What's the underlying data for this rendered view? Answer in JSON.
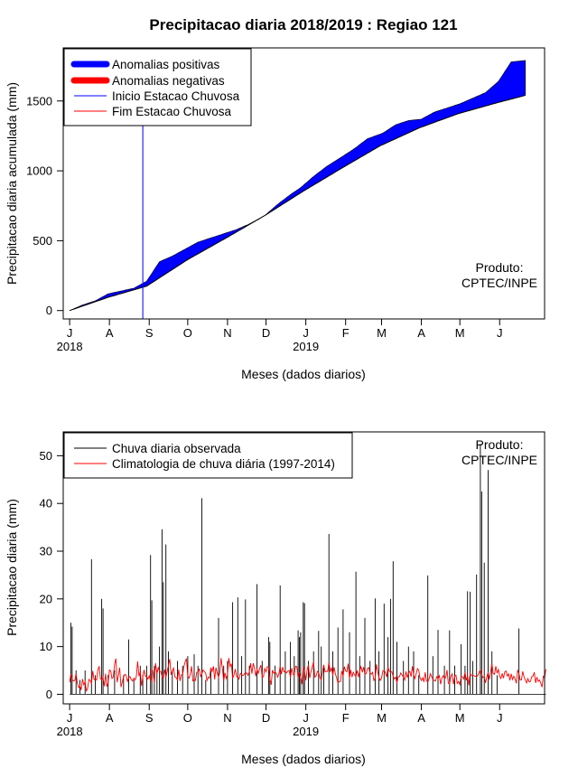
{
  "title": "Precipitacao diaria 2018/2019 : Regiao 121",
  "months": [
    "J",
    "A",
    "S",
    "O",
    "N",
    "D",
    "J",
    "F",
    "M",
    "A",
    "M",
    "J"
  ],
  "year_labels": [
    {
      "month_index": 0,
      "label": "2018"
    },
    {
      "month_index": 6,
      "label": "2019"
    }
  ],
  "xlabel": "Meses (dados diarios)",
  "product_text": [
    "Produto:",
    "CPTEC/INPE"
  ],
  "chart_data": [
    {
      "type": "area",
      "id": "accumulated",
      "ylabel": "Precipitacao diaria acumulada (mm)",
      "ylim": [
        -60,
        1880
      ],
      "yticks": [
        0,
        500,
        1000,
        1500
      ],
      "xlim_days": [
        -5,
        370
      ],
      "legend": [
        {
          "label": "Anomalias positivas",
          "color": "#0000ff",
          "style": "thick"
        },
        {
          "label": "Anomalias negativas",
          "color": "#ff0000",
          "style": "thick"
        },
        {
          "label": "Inicio Estacao Chuvosa",
          "color": "#0000ff",
          "style": "thin"
        },
        {
          "label": "Fim Estacao Chuvosa",
          "color": "#ff0000",
          "style": "thin"
        }
      ],
      "season_start_day": 57,
      "climatology_days": [
        0,
        30,
        60,
        92,
        122,
        152,
        183,
        214,
        242,
        273,
        303,
        334,
        355
      ],
      "climatology_values": [
        0,
        95,
        175,
        365,
        520,
        680,
        860,
        1030,
        1180,
        1310,
        1410,
        1490,
        1540
      ],
      "observed_days": [
        0,
        10,
        20,
        30,
        40,
        50,
        60,
        70,
        80,
        90,
        100,
        110,
        120,
        130,
        140,
        152,
        162,
        172,
        180,
        190,
        200,
        212,
        222,
        232,
        244,
        254,
        264,
        274,
        284,
        294,
        304,
        314,
        324,
        334,
        344,
        355
      ],
      "observed_values": [
        0,
        40,
        70,
        120,
        140,
        160,
        210,
        350,
        390,
        440,
        490,
        520,
        550,
        580,
        620,
        680,
        760,
        830,
        880,
        960,
        1030,
        1100,
        1160,
        1230,
        1270,
        1330,
        1360,
        1370,
        1420,
        1450,
        1480,
        1520,
        1560,
        1640,
        1780,
        1790
      ]
    },
    {
      "type": "line",
      "id": "daily",
      "ylabel": "Precipitacao diaria (mm)",
      "ylim": [
        -2,
        55
      ],
      "yticks": [
        0,
        10,
        20,
        30,
        40,
        50
      ],
      "xlim_days": [
        -5,
        370
      ],
      "legend": [
        {
          "label": "Chuva diaria observada",
          "color": "#000000"
        },
        {
          "label": "Climatologia de chuva diária (1997-2014)",
          "color": "#ff0000"
        }
      ],
      "observed_spikes": [
        {
          "day": 1,
          "value": 15
        },
        {
          "day": 2,
          "value": 14.2
        },
        {
          "day": 5,
          "value": 5
        },
        {
          "day": 8,
          "value": 3
        },
        {
          "day": 12,
          "value": 5
        },
        {
          "day": 17,
          "value": 28.3
        },
        {
          "day": 20,
          "value": 4
        },
        {
          "day": 25,
          "value": 20
        },
        {
          "day": 26,
          "value": 18
        },
        {
          "day": 30,
          "value": 4
        },
        {
          "day": 35,
          "value": 5
        },
        {
          "day": 42,
          "value": 4
        },
        {
          "day": 46,
          "value": 11.5
        },
        {
          "day": 50,
          "value": 3
        },
        {
          "day": 55,
          "value": 6
        },
        {
          "day": 57,
          "value": 4
        },
        {
          "day": 60,
          "value": 6
        },
        {
          "day": 63,
          "value": 29.2
        },
        {
          "day": 64,
          "value": 19.7
        },
        {
          "day": 66,
          "value": 6
        },
        {
          "day": 68,
          "value": 5
        },
        {
          "day": 70,
          "value": 10
        },
        {
          "day": 72,
          "value": 34.6
        },
        {
          "day": 73,
          "value": 23.5
        },
        {
          "day": 75,
          "value": 31.4
        },
        {
          "day": 77,
          "value": 9
        },
        {
          "day": 80,
          "value": 5
        },
        {
          "day": 84,
          "value": 7
        },
        {
          "day": 88,
          "value": 6
        },
        {
          "day": 92,
          "value": 8
        },
        {
          "day": 97,
          "value": 8.4
        },
        {
          "day": 100,
          "value": 6
        },
        {
          "day": 103,
          "value": 41.1
        },
        {
          "day": 106,
          "value": 3
        },
        {
          "day": 110,
          "value": 5
        },
        {
          "day": 116,
          "value": 16
        },
        {
          "day": 120,
          "value": 6
        },
        {
          "day": 123,
          "value": 7
        },
        {
          "day": 127,
          "value": 19.3
        },
        {
          "day": 131,
          "value": 20.3
        },
        {
          "day": 134,
          "value": 8
        },
        {
          "day": 137,
          "value": 19.9
        },
        {
          "day": 140,
          "value": 6
        },
        {
          "day": 146,
          "value": 23.1
        },
        {
          "day": 150,
          "value": 7
        },
        {
          "day": 155,
          "value": 12
        },
        {
          "day": 156,
          "value": 11
        },
        {
          "day": 160,
          "value": 6
        },
        {
          "day": 164,
          "value": 22.8
        },
        {
          "day": 168,
          "value": 9
        },
        {
          "day": 172,
          "value": 11
        },
        {
          "day": 175,
          "value": 8
        },
        {
          "day": 178,
          "value": 13.4
        },
        {
          "day": 179,
          "value": 12
        },
        {
          "day": 180,
          "value": 13
        },
        {
          "day": 182,
          "value": 19.3
        },
        {
          "day": 183,
          "value": 19.1
        },
        {
          "day": 186,
          "value": 7
        },
        {
          "day": 190,
          "value": 9
        },
        {
          "day": 194,
          "value": 13.3
        },
        {
          "day": 196,
          "value": 10
        },
        {
          "day": 198,
          "value": 6
        },
        {
          "day": 202,
          "value": 33.6
        },
        {
          "day": 205,
          "value": 9
        },
        {
          "day": 209,
          "value": 14
        },
        {
          "day": 213,
          "value": 17.8
        },
        {
          "day": 218,
          "value": 13
        },
        {
          "day": 223,
          "value": 25.7
        },
        {
          "day": 226,
          "value": 8
        },
        {
          "day": 230,
          "value": 16
        },
        {
          "day": 234,
          "value": 7
        },
        {
          "day": 238,
          "value": 20.1
        },
        {
          "day": 241,
          "value": 9
        },
        {
          "day": 245,
          "value": 19
        },
        {
          "day": 248,
          "value": 12
        },
        {
          "day": 250,
          "value": 20
        },
        {
          "day": 252,
          "value": 27.9
        },
        {
          "day": 255,
          "value": 11
        },
        {
          "day": 260,
          "value": 7
        },
        {
          "day": 264,
          "value": 10
        },
        {
          "day": 268,
          "value": 9
        },
        {
          "day": 272,
          "value": 4
        },
        {
          "day": 279,
          "value": 24.9
        },
        {
          "day": 283,
          "value": 8
        },
        {
          "day": 287,
          "value": 13.5
        },
        {
          "day": 292,
          "value": 6
        },
        {
          "day": 296,
          "value": 13.4
        },
        {
          "day": 300,
          "value": 6
        },
        {
          "day": 305,
          "value": 10.5
        },
        {
          "day": 308,
          "value": 6
        },
        {
          "day": 310,
          "value": 21.6
        },
        {
          "day": 312,
          "value": 21.5
        },
        {
          "day": 314,
          "value": 7
        },
        {
          "day": 317,
          "value": 25.1
        },
        {
          "day": 320,
          "value": 52.5
        },
        {
          "day": 321,
          "value": 42.5
        },
        {
          "day": 323,
          "value": 27.6
        },
        {
          "day": 326,
          "value": 47
        },
        {
          "day": 329,
          "value": 9
        },
        {
          "day": 333,
          "value": 4
        },
        {
          "day": 350,
          "value": 13.8
        }
      ],
      "climatology_series": [
        2.5,
        4.3,
        3.1,
        2.8,
        2.9,
        4.3,
        2.4,
        1.4,
        1.8,
        0.9,
        3.2,
        2,
        2.6,
        0.7,
        1.2,
        3.1,
        2.9,
        2.3,
        4.9,
        3.1,
        3.2,
        3,
        5.1,
        5.9,
        3.2,
        3.1,
        3.5,
        1.7,
        4.3,
        1.6,
        2.4,
        5.1,
        4.9,
        3.3,
        3.6,
        6.3,
        7.5,
        2.5,
        3.9,
        5.6,
        1.5,
        2.6,
        3.6,
        4.2,
        4,
        2.7,
        3.5,
        3.7,
        3.1,
        2.8,
        3.4,
        3,
        3.8,
        6.9,
        3.8,
        4.8,
        1.8,
        3.6,
        5.1,
        3.8,
        3.7,
        3.2,
        3.9,
        2.7,
        5.4,
        4.5,
        2.3,
        6.5,
        4.3,
        5.6,
        4.8,
        4.8,
        3.8,
        3.3,
        5.2,
        3.6,
        4.8,
        6,
        7.4,
        4.1,
        4.9,
        5.5,
        3.6,
        3.5,
        3,
        5.2,
        2.8,
        4.1,
        4.1,
        5.8,
        6.8,
        7.5,
        3.8,
        3.4,
        4.2,
        5.9,
        2.8,
        3.1,
        2.9,
        4.6,
        4.6,
        5.4,
        3.7,
        4.3,
        5.1,
        4.8,
        4.4,
        2.9,
        3.6,
        3.4,
        5.6,
        4.8,
        5.9,
        3.1,
        5.6,
        4.4,
        3.6,
        4.6,
        7.6,
        5.6,
        2.8,
        4.5,
        3.3,
        4.1,
        7.6,
        5.8,
        6.4,
        3.3,
        4,
        5.3,
        3.7,
        3.6,
        3.2,
        4.4,
        4.1,
        3.9,
        4.2,
        4.6,
        4.4,
        4,
        4.8,
        6.5,
        4.3,
        6.5,
        5.5,
        3.8,
        5.2,
        4.4,
        5.4,
        6.1,
        3.5,
        3.7,
        5.4,
        4.7,
        5.8,
        5.7,
        3.3,
        2,
        5.1,
        4.4,
        4.7,
        4.4,
        3.6,
        4.3,
        5.9,
        4.2,
        5.7,
        4.7,
        4.8,
        4.5,
        4.9,
        5,
        3.5,
        5.5,
        4.2,
        4.1,
        5.9,
        5.8,
        3.4,
        4.6,
        3.7,
        2.1,
        5.7,
        5,
        2.9,
        5.1,
        6.2,
        3.4,
        4.7,
        5.7,
        6.8,
        3.6,
        3.8,
        4.8,
        4.6,
        3.5,
        3,
        4.7,
        6.2,
        4.7,
        4.8,
        4.8,
        6.7,
        4.7,
        5.6,
        3.9,
        5.7,
        4.3,
        3.5,
        2.4,
        2.7,
        2.7,
        4.9,
        3.8,
        5.8,
        4.9,
        4.7,
        6.4,
        3.3,
        5.1,
        3.6,
        4.6,
        4.1,
        3.7,
        5,
        3.6,
        4.9,
        5.8,
        4.6,
        5.7,
        4.2,
        4.3,
        5.4,
        5.6,
        4.5,
        4.2,
        4.6,
        2.9,
        3.4,
        6.3,
        4.8,
        3.5,
        2.9,
        3.4,
        4.9,
        5,
        4.5,
        3.6,
        5.7,
        4.9,
        4.6,
        4.7,
        3.8,
        3.2,
        3.6,
        2.4,
        3.7,
        3.7,
        4.5,
        4,
        3.6,
        3,
        4.8,
        3.5,
        4.5,
        4.8,
        3.7,
        5.9,
        4.1,
        3.3,
        4.4,
        5.4,
        5,
        3.4,
        2.9,
        3.5,
        2.6,
        4.6,
        2.8,
        2.6,
        3.2,
        4.3,
        3.7,
        3.1,
        2.9,
        2.8,
        3.7,
        3.3,
        3.9,
        2.1,
        3.4,
        3.9,
        3.3,
        3.5,
        5.1,
        2.3,
        2.2,
        3.7,
        4.3,
        2.1,
        3.8,
        4,
        2.3,
        2.7,
        2,
        3.7,
        3.7,
        3.2,
        4.6,
        2.9,
        3.8,
        1.9,
        4.4,
        3.9,
        3.9,
        3.9,
        3.8,
        3.8,
        3.9,
        4.6,
        5.1,
        4.1,
        3.5,
        3.7,
        2.4,
        3.6,
        4.6,
        3.1,
        4.7,
        6.4,
        4.4,
        4.2,
        5.9,
        4.4,
        5.2,
        3.8,
        3.3,
        4.4,
        3.4,
        4.7,
        4.9,
        3.8,
        4.3,
        2.9,
        4.3,
        3.1,
        3.8,
        3.3,
        2.3,
        5,
        4.4,
        3,
        3,
        4.8,
        3.6,
        3,
        2.4,
        3.3,
        2.6,
        2.7,
        3.7,
        3.8,
        4.6,
        2.4,
        3.6,
        2.7,
        3,
        2.4,
        1.5,
        3.8,
        3.4,
        5.3
      ]
    }
  ]
}
